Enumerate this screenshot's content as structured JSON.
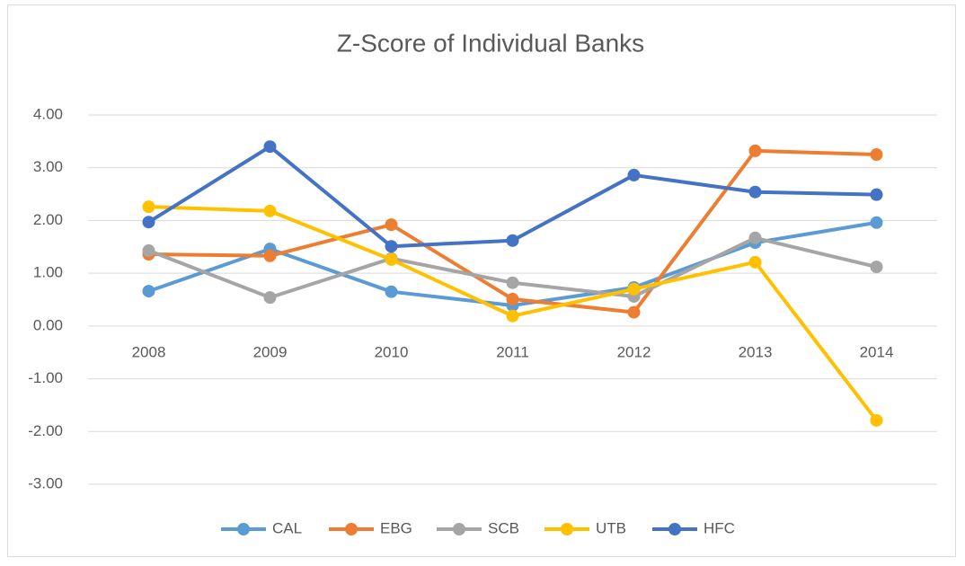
{
  "chart_data": {
    "type": "line",
    "title": "Z-Score of Individual Banks",
    "categories": [
      "2008",
      "2009",
      "2010",
      "2011",
      "2012",
      "2013",
      "2014"
    ],
    "series": [
      {
        "name": "CAL",
        "color": "#5b9bd5",
        "values": [
          0.66,
          1.46,
          0.65,
          0.39,
          0.73,
          1.58,
          1.96
        ]
      },
      {
        "name": "EBG",
        "color": "#ed7d31",
        "values": [
          1.36,
          1.33,
          1.92,
          0.51,
          0.26,
          3.32,
          3.25
        ]
      },
      {
        "name": "SCB",
        "color": "#a5a5a5",
        "values": [
          1.43,
          0.54,
          1.28,
          0.82,
          0.56,
          1.67,
          1.12
        ]
      },
      {
        "name": "UTB",
        "color": "#ffc000",
        "values": [
          2.26,
          2.18,
          1.26,
          0.19,
          0.7,
          1.21,
          -1.79
        ]
      },
      {
        "name": "HFC",
        "color": "#4472c4",
        "values": [
          1.97,
          3.4,
          1.51,
          1.62,
          2.86,
          2.54,
          2.49
        ]
      }
    ],
    "ylim": [
      -3,
      4
    ],
    "yticks": [
      {
        "value": -3,
        "label": "-3.00"
      },
      {
        "value": -2,
        "label": "-2.00"
      },
      {
        "value": -1,
        "label": "-1.00"
      },
      {
        "value": 0,
        "label": "0.00"
      },
      {
        "value": 1,
        "label": "1.00"
      },
      {
        "value": 2,
        "label": "2.00"
      },
      {
        "value": 3,
        "label": "3.00"
      },
      {
        "value": 4,
        "label": "4.00"
      }
    ],
    "grid": true,
    "legend": "bottom"
  }
}
